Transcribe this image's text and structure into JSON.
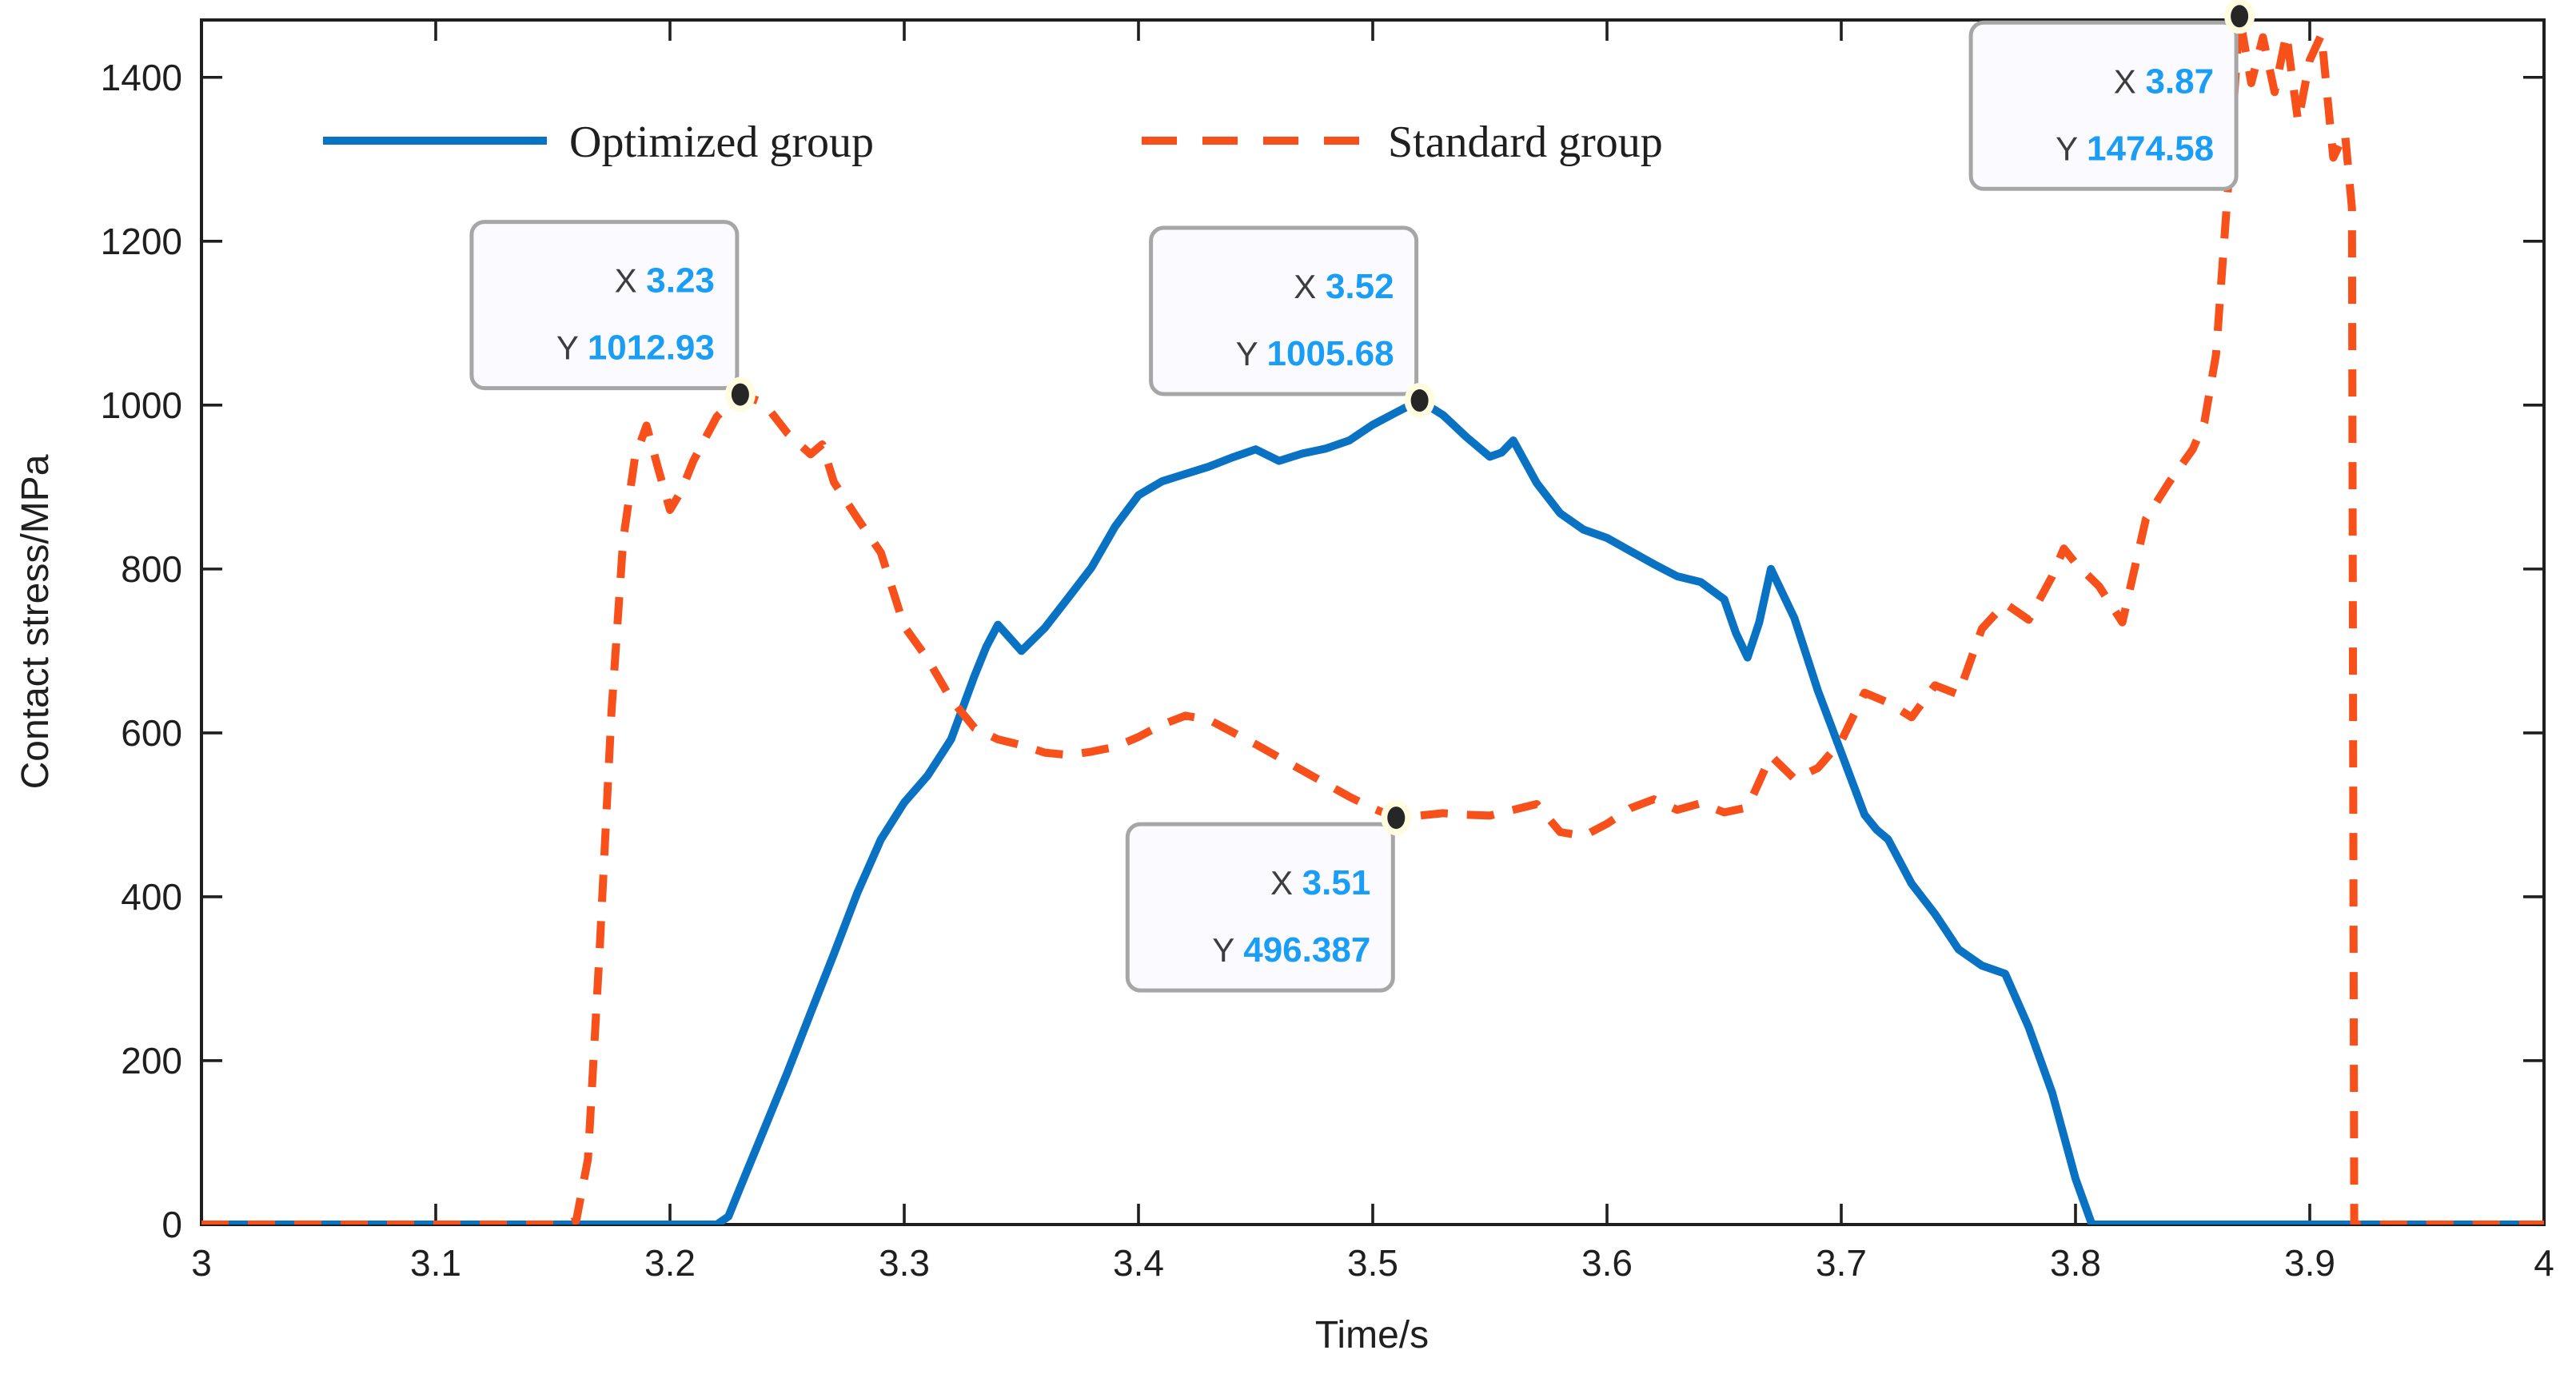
{
  "chart_data": {
    "type": "line",
    "xlabel": "Time/s",
    "ylabel": "Contact stress/MPa",
    "grid": false,
    "legend_position": "top-inside-horizontal",
    "x_axis": {
      "range": [
        3,
        4
      ],
      "tick_values": [
        3,
        3.1,
        3.2,
        3.3,
        3.4,
        3.5,
        3.6,
        3.7,
        3.8,
        3.9,
        4
      ],
      "tick_labels": [
        "3",
        "3.1",
        "3.2",
        "3.3",
        "3.4",
        "3.5",
        "3.6",
        "3.7",
        "3.8",
        "3.9",
        "4"
      ]
    },
    "y_axis": {
      "range": [
        0,
        1470
      ],
      "tick_values": [
        0,
        200,
        400,
        600,
        800,
        1000,
        1200,
        1400
      ],
      "tick_labels": [
        "0",
        "200",
        "400",
        "600",
        "800",
        "1000",
        "1200",
        "1400"
      ]
    },
    "series": [
      {
        "name": "Optimized group",
        "color": "#0a72c2",
        "dash": false,
        "points": [
          [
            3.0,
            0
          ],
          [
            3.02,
            0
          ],
          [
            3.04,
            0
          ],
          [
            3.06,
            0
          ],
          [
            3.08,
            0
          ],
          [
            3.1,
            0
          ],
          [
            3.12,
            0
          ],
          [
            3.14,
            0
          ],
          [
            3.16,
            0
          ],
          [
            3.18,
            0
          ],
          [
            3.2,
            0
          ],
          [
            3.22,
            0
          ],
          [
            3.225,
            10
          ],
          [
            3.23,
            45
          ],
          [
            3.24,
            115
          ],
          [
            3.25,
            185
          ],
          [
            3.26,
            258
          ],
          [
            3.27,
            330
          ],
          [
            3.28,
            405
          ],
          [
            3.29,
            470
          ],
          [
            3.3,
            515
          ],
          [
            3.31,
            548
          ],
          [
            3.32,
            592
          ],
          [
            3.33,
            670
          ],
          [
            3.335,
            705
          ],
          [
            3.34,
            732
          ],
          [
            3.35,
            700
          ],
          [
            3.36,
            728
          ],
          [
            3.37,
            765
          ],
          [
            3.38,
            802
          ],
          [
            3.39,
            852
          ],
          [
            3.4,
            890
          ],
          [
            3.41,
            907
          ],
          [
            3.42,
            916
          ],
          [
            3.43,
            925
          ],
          [
            3.44,
            936
          ],
          [
            3.45,
            946
          ],
          [
            3.46,
            932
          ],
          [
            3.47,
            941
          ],
          [
            3.48,
            947
          ],
          [
            3.49,
            957
          ],
          [
            3.5,
            976
          ],
          [
            3.51,
            991
          ],
          [
            3.52,
            1005.68
          ],
          [
            3.53,
            988
          ],
          [
            3.54,
            961
          ],
          [
            3.55,
            937
          ],
          [
            3.555,
            942
          ],
          [
            3.56,
            957
          ],
          [
            3.57,
            905
          ],
          [
            3.58,
            868
          ],
          [
            3.59,
            848
          ],
          [
            3.6,
            838
          ],
          [
            3.61,
            822
          ],
          [
            3.62,
            806
          ],
          [
            3.63,
            791
          ],
          [
            3.64,
            784
          ],
          [
            3.65,
            763
          ],
          [
            3.655,
            722
          ],
          [
            3.66,
            692
          ],
          [
            3.665,
            735
          ],
          [
            3.67,
            800
          ],
          [
            3.68,
            740
          ],
          [
            3.69,
            652
          ],
          [
            3.7,
            576
          ],
          [
            3.71,
            500
          ],
          [
            3.715,
            482
          ],
          [
            3.72,
            470
          ],
          [
            3.73,
            416
          ],
          [
            3.74,
            379
          ],
          [
            3.75,
            336
          ],
          [
            3.76,
            316
          ],
          [
            3.77,
            306
          ],
          [
            3.78,
            241
          ],
          [
            3.79,
            161
          ],
          [
            3.8,
            56
          ],
          [
            3.807,
            0
          ],
          [
            3.84,
            0
          ],
          [
            3.88,
            0
          ],
          [
            3.92,
            0
          ],
          [
            3.96,
            0
          ],
          [
            4.0,
            0
          ]
        ]
      },
      {
        "name": "Standard group",
        "color": "#f7501b",
        "dash": true,
        "points": [
          [
            3.0,
            0
          ],
          [
            3.02,
            0
          ],
          [
            3.04,
            0
          ],
          [
            3.06,
            0
          ],
          [
            3.08,
            0
          ],
          [
            3.1,
            0
          ],
          [
            3.12,
            0
          ],
          [
            3.14,
            0
          ],
          [
            3.155,
            0
          ],
          [
            3.16,
            5
          ],
          [
            3.165,
            80
          ],
          [
            3.17,
            335
          ],
          [
            3.175,
            625
          ],
          [
            3.18,
            835
          ],
          [
            3.185,
            935
          ],
          [
            3.19,
            975
          ],
          [
            3.195,
            922
          ],
          [
            3.2,
            872
          ],
          [
            3.205,
            896
          ],
          [
            3.21,
            932
          ],
          [
            3.22,
            986
          ],
          [
            3.23,
            1012.93
          ],
          [
            3.24,
            1003
          ],
          [
            3.25,
            966
          ],
          [
            3.26,
            940
          ],
          [
            3.265,
            952
          ],
          [
            3.27,
            906
          ],
          [
            3.28,
            862
          ],
          [
            3.29,
            820
          ],
          [
            3.3,
            730
          ],
          [
            3.31,
            690
          ],
          [
            3.32,
            641
          ],
          [
            3.33,
            606
          ],
          [
            3.34,
            592
          ],
          [
            3.35,
            585
          ],
          [
            3.36,
            576
          ],
          [
            3.37,
            573
          ],
          [
            3.38,
            577
          ],
          [
            3.39,
            583
          ],
          [
            3.4,
            595
          ],
          [
            3.41,
            610
          ],
          [
            3.42,
            621
          ],
          [
            3.43,
            616
          ],
          [
            3.44,
            601
          ],
          [
            3.45,
            586
          ],
          [
            3.46,
            570
          ],
          [
            3.47,
            554
          ],
          [
            3.48,
            538
          ],
          [
            3.49,
            522
          ],
          [
            3.5,
            508
          ],
          [
            3.51,
            496.387
          ],
          [
            3.52,
            499
          ],
          [
            3.53,
            502
          ],
          [
            3.54,
            500
          ],
          [
            3.55,
            499
          ],
          [
            3.56,
            506
          ],
          [
            3.57,
            513
          ],
          [
            3.58,
            479
          ],
          [
            3.59,
            474
          ],
          [
            3.6,
            489
          ],
          [
            3.61,
            508
          ],
          [
            3.62,
            519
          ],
          [
            3.63,
            506
          ],
          [
            3.64,
            514
          ],
          [
            3.65,
            503
          ],
          [
            3.66,
            509
          ],
          [
            3.67,
            572
          ],
          [
            3.68,
            544
          ],
          [
            3.69,
            557
          ],
          [
            3.7,
            590
          ],
          [
            3.71,
            649
          ],
          [
            3.72,
            637
          ],
          [
            3.73,
            619
          ],
          [
            3.74,
            658
          ],
          [
            3.75,
            647
          ],
          [
            3.76,
            727
          ],
          [
            3.77,
            758
          ],
          [
            3.78,
            738
          ],
          [
            3.79,
            791
          ],
          [
            3.795,
            825
          ],
          [
            3.8,
            807
          ],
          [
            3.81,
            779
          ],
          [
            3.82,
            735
          ],
          [
            3.83,
            861
          ],
          [
            3.84,
            906
          ],
          [
            3.85,
            946
          ],
          [
            3.855,
            979
          ],
          [
            3.86,
            1062
          ],
          [
            3.865,
            1260
          ],
          [
            3.87,
            1474.58
          ],
          [
            3.875,
            1393
          ],
          [
            3.88,
            1449
          ],
          [
            3.885,
            1382
          ],
          [
            3.89,
            1453
          ],
          [
            3.895,
            1346
          ],
          [
            3.9,
            1421
          ],
          [
            3.905,
            1452
          ],
          [
            3.91,
            1302
          ],
          [
            3.915,
            1332
          ],
          [
            3.918,
            1240
          ],
          [
            3.9185,
            600
          ],
          [
            3.919,
            0
          ],
          [
            3.93,
            0
          ],
          [
            3.96,
            0
          ],
          [
            4.0,
            0
          ]
        ]
      }
    ],
    "datatips": [
      {
        "x": 3.23,
        "y": 1012.93,
        "x_label": "X",
        "y_label": "Y",
        "x_display": "3.23",
        "y_display": "1012.93",
        "anchor": "above-left"
      },
      {
        "x": 3.52,
        "y": 1005.68,
        "x_label": "X",
        "y_label": "Y",
        "x_display": "3.52",
        "y_display": "1005.68",
        "anchor": "above-left"
      },
      {
        "x": 3.51,
        "y": 496.387,
        "x_label": "X",
        "y_label": "Y",
        "x_display": "3.51",
        "y_display": "496.387",
        "anchor": "below-left"
      },
      {
        "x": 3.87,
        "y": 1474.58,
        "x_label": "X",
        "y_label": "Y",
        "x_display": "3.87",
        "y_display": "1474.58",
        "anchor": "below-left"
      }
    ],
    "colors": {
      "axis": "#1f1f1f",
      "tip_value": "#1a9df5",
      "tip_box_bg": "#fafaff",
      "tip_box_border": "#a6a6a6",
      "marker_fill": "#262626",
      "marker_halo": "#fffcdf"
    }
  }
}
